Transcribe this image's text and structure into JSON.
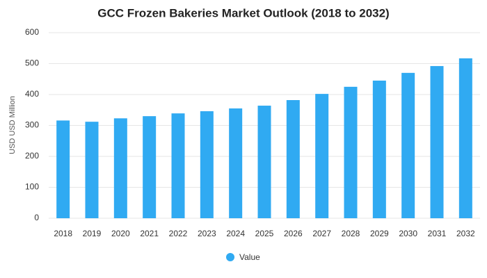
{
  "chart_data": {
    "type": "bar",
    "title": "GCC Frozen Bakeries Market Outlook (2018 to 2032)",
    "y_label": "USD USD Million",
    "categories": [
      "2018",
      "2019",
      "2020",
      "2021",
      "2022",
      "2023",
      "2024",
      "2025",
      "2026",
      "2027",
      "2028",
      "2029",
      "2030",
      "2031",
      "2032"
    ],
    "series": [
      {
        "name": "Value",
        "color": "#30aaf2",
        "values": [
          316,
          312,
          323,
          330,
          339,
          346,
          355,
          364,
          382,
          402,
          425,
          445,
          470,
          492,
          517
        ]
      }
    ],
    "ylim": [
      0,
      600
    ],
    "yticks": [
      0,
      100,
      200,
      300,
      400,
      500,
      600
    ],
    "grid": true,
    "legend": "bottom"
  }
}
